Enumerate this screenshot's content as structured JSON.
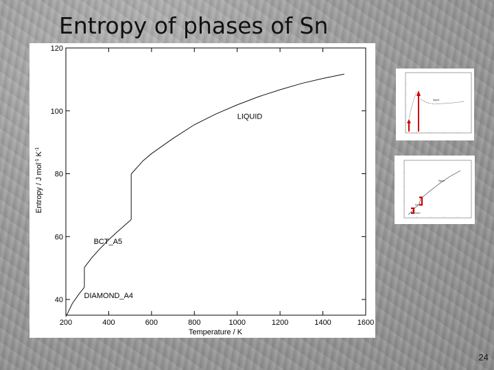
{
  "slide": {
    "title": "Entropy of phases of Sn",
    "page_number": "24"
  },
  "chart_data": {
    "type": "line",
    "ylabel_main": "Entropy / J mol",
    "ylabel_sup1": "-1",
    "ylabel_mid": " K",
    "ylabel_sup2": "-1",
    "xlabel": "Temperature / K",
    "xlim": [
      200,
      1600
    ],
    "ylim": [
      35,
      120
    ],
    "xticks": [
      200,
      400,
      600,
      800,
      1000,
      1200,
      1400,
      1600
    ],
    "yticks": [
      40,
      60,
      80,
      100,
      120
    ],
    "grid": false,
    "series": [
      {
        "name": "DIAMOND_A4",
        "x": [
          200,
          230,
          260,
          286.4
        ],
        "y": [
          34.5,
          38.7,
          41.6,
          43.9
        ]
      },
      {
        "name": "BCT_A5",
        "x": [
          286.4,
          320,
          360,
          400,
          440,
          480,
          505
        ],
        "y": [
          50.2,
          53.2,
          56.2,
          59.0,
          61.5,
          63.9,
          65.4
        ]
      },
      {
        "name": "LIQUID",
        "x": [
          505,
          560,
          600,
          700,
          800,
          900,
          1000,
          1100,
          1200,
          1300,
          1400,
          1500
        ],
        "y": [
          79.9,
          84.1,
          86.4,
          91.2,
          95.6,
          99.0,
          101.9,
          104.5,
          106.7,
          108.7,
          110.3,
          111.7
        ]
      }
    ],
    "transitions": [
      {
        "x": 286.4,
        "y_from": 43.9,
        "y_to": 50.2
      },
      {
        "x": 505,
        "y_from": 65.4,
        "y_to": 79.9
      }
    ],
    "annotations": [
      {
        "text": "DIAMOND_A4",
        "x": 285,
        "y": 40.5
      },
      {
        "text": "BCT_A5",
        "x": 330,
        "y": 57.7
      },
      {
        "text": "LIQUID",
        "x": 1000,
        "y": 97.4
      }
    ]
  },
  "thumbnails": {
    "accent_red": "#cc0000",
    "thumb1_labels": [
      "liquid"
    ],
    "thumb2_labels": [
      "liquid",
      "bct",
      "diamond"
    ]
  }
}
